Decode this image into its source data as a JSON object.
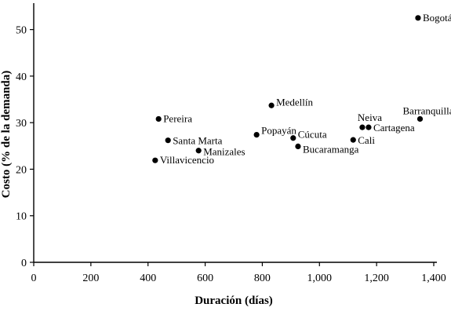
{
  "chart_data": {
    "type": "scatter",
    "title": "",
    "xlabel": "Duración (días)",
    "ylabel": "Costo (% de la demanda)",
    "xlim": [
      0,
      1400
    ],
    "ylim": [
      0,
      55
    ],
    "x_ticks": [
      0,
      200,
      400,
      600,
      800,
      1000,
      1200,
      1400
    ],
    "x_tick_labels": [
      "0",
      "200",
      "400",
      "600",
      "800",
      "1,000",
      "1,200",
      "1,400"
    ],
    "y_ticks": [
      0,
      10,
      20,
      30,
      40,
      50
    ],
    "y_tick_labels": [
      "0",
      "10",
      "20",
      "30",
      "40",
      "50"
    ],
    "grid": false,
    "points": [
      {
        "label": "Bogotá",
        "x": 1345,
        "y": 52.5
      },
      {
        "label": "Barranquilla",
        "x": 1352,
        "y": 30.8
      },
      {
        "label": "Medellín",
        "x": 832,
        "y": 33.7
      },
      {
        "label": "Pereira",
        "x": 437,
        "y": 30.8
      },
      {
        "label": "Neiva",
        "x": 1150,
        "y": 29.0
      },
      {
        "label": "Cartagena",
        "x": 1172,
        "y": 29.0
      },
      {
        "label": "Popayán",
        "x": 780,
        "y": 27.4
      },
      {
        "label": "Cúcuta",
        "x": 908,
        "y": 26.7
      },
      {
        "label": "Cali",
        "x": 1118,
        "y": 26.3
      },
      {
        "label": "Santa Marta",
        "x": 470,
        "y": 26.2
      },
      {
        "label": "Bucaramanga",
        "x": 925,
        "y": 24.9
      },
      {
        "label": "Manizales",
        "x": 577,
        "y": 24.0
      },
      {
        "label": "Villavicencio",
        "x": 425,
        "y": 21.9
      }
    ]
  }
}
